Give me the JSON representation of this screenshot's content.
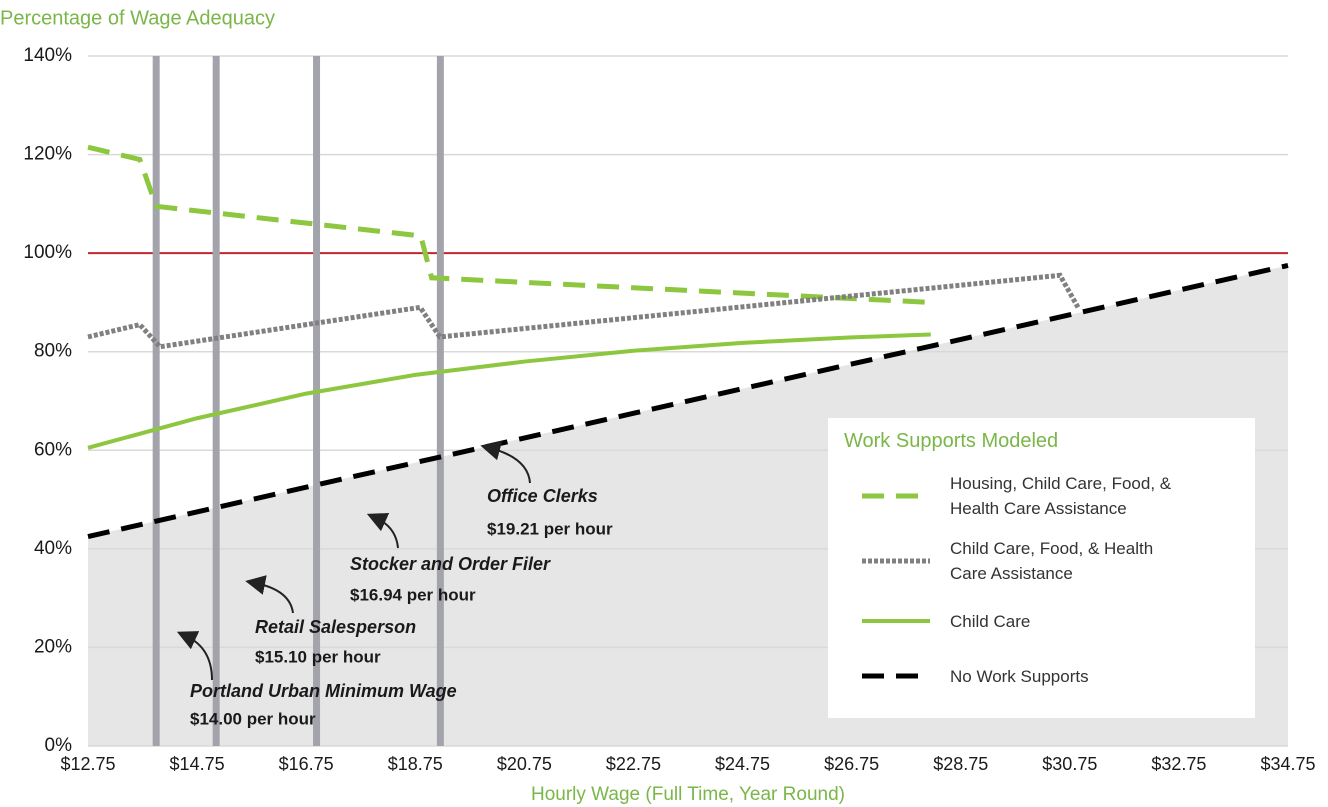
{
  "chart_data": {
    "type": "line",
    "title": "Percentage of Wage Adequacy",
    "x_label": "Hourly Wage (Full Time, Year Round)",
    "xlim": [
      12.75,
      34.75
    ],
    "xticks": [
      {
        "value": 12.75,
        "label": "$12.75"
      },
      {
        "value": 14.75,
        "label": "$14.75"
      },
      {
        "value": 16.75,
        "label": "$16.75"
      },
      {
        "value": 18.75,
        "label": "$18.75"
      },
      {
        "value": 20.75,
        "label": "$20.75"
      },
      {
        "value": 22.75,
        "label": "$22.75"
      },
      {
        "value": 24.75,
        "label": "$24.75"
      },
      {
        "value": 26.75,
        "label": "$26.75"
      },
      {
        "value": 28.75,
        "label": "$28.75"
      },
      {
        "value": 30.75,
        "label": "$30.75"
      },
      {
        "value": 32.75,
        "label": "$32.75"
      },
      {
        "value": 34.75,
        "label": "$34.75"
      }
    ],
    "ylim": [
      0,
      140
    ],
    "yticks": [
      {
        "value": 0,
        "label": "0%"
      },
      {
        "value": 20,
        "label": "20%"
      },
      {
        "value": 40,
        "label": "40%"
      },
      {
        "value": 60,
        "label": "60%"
      },
      {
        "value": 80,
        "label": "80%"
      },
      {
        "value": 100,
        "label": "100%"
      },
      {
        "value": 120,
        "label": "120%"
      },
      {
        "value": 140,
        "label": "140%"
      }
    ],
    "grid": true,
    "reference_line": {
      "value": 100,
      "color": "#c0272d"
    },
    "legend_title": "Work Supports Modeled",
    "legend_position": "lower right",
    "series": [
      {
        "name": "Housing, Child Care, Food, & Health Care Assistance",
        "color": "#8dc63f",
        "style": "dashed",
        "x": [
          12.75,
          13.7,
          14.0,
          18.85,
          19.05,
          28.2
        ],
        "values": [
          121.5,
          119,
          109.5,
          103.5,
          95,
          90
        ]
      },
      {
        "name": "Child Care, Food, & Health Care Assistance",
        "color": "#808080",
        "style": "dotted",
        "x": [
          12.75,
          13.7,
          14.07,
          18.84,
          19.2,
          30.57,
          30.9
        ],
        "values": [
          83,
          85.5,
          81,
          89,
          83,
          95.5,
          89
        ]
      },
      {
        "name": "Child Care",
        "color": "#8dc63f",
        "style": "solid",
        "x": [
          12.75,
          14.75,
          16.75,
          18.75,
          20.75,
          22.75,
          24.75,
          26.75,
          28.2
        ],
        "values": [
          60.5,
          66.5,
          71.5,
          75.3,
          78,
          80.2,
          81.8,
          82.9,
          83.5
        ]
      },
      {
        "name": "No Work Supports",
        "color": "#000000",
        "style": "dashed",
        "shaded": true,
        "x": [
          12.75,
          34.75
        ],
        "values": [
          42.5,
          97.5
        ]
      }
    ],
    "annotations": [
      {
        "label": "Portland Urban Minimum Wage",
        "wage": 14.0,
        "wage_label": "$14.00 per hour"
      },
      {
        "label": "Retail Salesperson",
        "wage": 15.1,
        "wage_label": "$15.10 per hour"
      },
      {
        "label": "Stocker and Order Filer",
        "wage": 16.94,
        "wage_label": "$16.94 per hour"
      },
      {
        "label": "Office Clerks",
        "wage": 19.21,
        "wage_label": "$19.21 per hour"
      }
    ]
  }
}
